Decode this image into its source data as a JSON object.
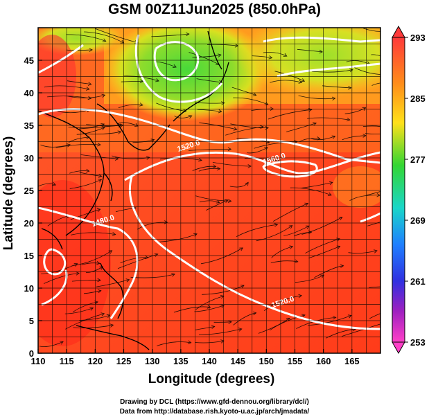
{
  "title": "GSM 00Z11Jun2025 (850.0hPa)",
  "xlabel": "Longitude (degrees)",
  "ylabel": "Latitude (degrees)",
  "credits": {
    "line1": "Drawing by DCL (https://www.gfd-dennou.org/library/dcl/)",
    "line2": "Data from http://database.rish.kyoto-u.ac.jp/arch/jmadata/"
  },
  "map": {
    "lon_range": [
      110,
      170
    ],
    "lat_range": [
      0,
      50
    ],
    "lon_ticks": [
      "110",
      "115",
      "120",
      "125",
      "130",
      "135",
      "140",
      "145",
      "150",
      "155",
      "160",
      "165"
    ],
    "lat_ticks": [
      "0",
      "5",
      "10",
      "15",
      "20",
      "25",
      "30",
      "35",
      "40",
      "45"
    ],
    "contour_labels": [
      {
        "text": "1520.0",
        "lon": 136.5,
        "lat": 31.5
      },
      {
        "text": "1560.0",
        "lon": 151.5,
        "lat": 29.5
      },
      {
        "text": "1480.0",
        "lon": 121.5,
        "lat": 20.0
      },
      {
        "text": "1520.0",
        "lon": 153.0,
        "lat": 7.5
      }
    ]
  },
  "colorbar": {
    "min": 253,
    "max": 293,
    "tick_labels": [
      "293",
      "285",
      "277",
      "269",
      "261",
      "253"
    ],
    "colors": [
      "#ff3a3a",
      "#ff8c1a",
      "#ffe01a",
      "#33d633",
      "#19d6c9",
      "#1f7fff",
      "#3030e0",
      "#2020a0",
      "#a020c0",
      "#ff40c8"
    ]
  }
}
